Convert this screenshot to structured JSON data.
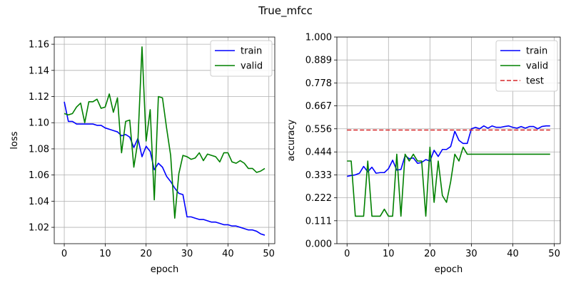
{
  "figure_title": "True_mfcc",
  "colors": {
    "train": "#0000ff",
    "valid": "#008000",
    "test": "#d62728"
  },
  "chart_data": [
    {
      "type": "line",
      "xlabel": "epoch",
      "ylabel": "loss",
      "xlim": [
        -2.45,
        51.45
      ],
      "ylim": [
        1.0075,
        1.1655
      ],
      "xticks": [
        0,
        10,
        20,
        30,
        40,
        50
      ],
      "xtick_labels": [
        "0",
        "10",
        "20",
        "30",
        "40",
        "50"
      ],
      "yticks": [
        1.02,
        1.04,
        1.06,
        1.08,
        1.1,
        1.12,
        1.14,
        1.16
      ],
      "ytick_labels": [
        "1.02",
        "1.04",
        "1.06",
        "1.08",
        "1.10",
        "1.12",
        "1.14",
        "1.16"
      ],
      "grid": true,
      "legend_position": "top-right",
      "series": [
        {
          "name": "train",
          "color": "#0000ff",
          "style": "solid",
          "x": [
            0,
            1,
            2,
            3,
            4,
            5,
            6,
            7,
            8,
            9,
            10,
            11,
            12,
            13,
            14,
            15,
            16,
            17,
            18,
            19,
            20,
            21,
            22,
            23,
            24,
            25,
            26,
            27,
            28,
            29,
            30,
            31,
            32,
            33,
            34,
            35,
            36,
            37,
            38,
            39,
            40,
            41,
            42,
            43,
            44,
            45,
            46,
            47,
            48,
            49
          ],
          "values": [
            1.116,
            1.101,
            1.101,
            1.099,
            1.099,
            1.099,
            1.099,
            1.099,
            1.098,
            1.098,
            1.096,
            1.095,
            1.094,
            1.093,
            1.09,
            1.091,
            1.089,
            1.081,
            1.088,
            1.074,
            1.082,
            1.078,
            1.064,
            1.069,
            1.066,
            1.059,
            1.055,
            1.05,
            1.046,
            1.045,
            1.028,
            1.028,
            1.027,
            1.026,
            1.026,
            1.025,
            1.024,
            1.024,
            1.023,
            1.022,
            1.022,
            1.021,
            1.021,
            1.02,
            1.019,
            1.018,
            1.018,
            1.017,
            1.015,
            1.014
          ]
        },
        {
          "name": "valid",
          "color": "#008000",
          "style": "solid",
          "x": [
            0,
            1,
            2,
            3,
            4,
            5,
            6,
            7,
            8,
            9,
            10,
            11,
            12,
            13,
            14,
            15,
            16,
            17,
            18,
            19,
            20,
            21,
            22,
            23,
            24,
            25,
            26,
            27,
            28,
            29,
            30,
            31,
            32,
            33,
            34,
            35,
            36,
            37,
            38,
            39,
            40,
            41,
            42,
            43,
            44,
            45,
            46,
            47,
            48,
            49
          ],
          "values": [
            1.107,
            1.106,
            1.107,
            1.112,
            1.115,
            1.1,
            1.116,
            1.116,
            1.118,
            1.111,
            1.112,
            1.122,
            1.108,
            1.119,
            1.077,
            1.101,
            1.102,
            1.066,
            1.086,
            1.158,
            1.086,
            1.11,
            1.041,
            1.12,
            1.119,
            1.096,
            1.075,
            1.027,
            1.061,
            1.075,
            1.074,
            1.072,
            1.073,
            1.077,
            1.071,
            1.076,
            1.075,
            1.074,
            1.07,
            1.077,
            1.077,
            1.07,
            1.069,
            1.071,
            1.069,
            1.065,
            1.065,
            1.062,
            1.063,
            1.065
          ]
        }
      ]
    },
    {
      "type": "line",
      "xlabel": "epoch",
      "ylabel": "accuracy",
      "xlim": [
        -2.45,
        51.45
      ],
      "ylim": [
        0.0,
        1.0
      ],
      "xticks": [
        0,
        10,
        20,
        30,
        40,
        50
      ],
      "xtick_labels": [
        "0",
        "10",
        "20",
        "30",
        "40",
        "50"
      ],
      "yticks": [
        0.0,
        0.111,
        0.222,
        0.333,
        0.444,
        0.556,
        0.667,
        0.778,
        0.889,
        1.0
      ],
      "ytick_labels": [
        "0.000",
        "0.111",
        "0.222",
        "0.333",
        "0.444",
        "0.556",
        "0.667",
        "0.778",
        "0.889",
        "1.000"
      ],
      "grid": true,
      "legend_position": "top-right",
      "series": [
        {
          "name": "train",
          "color": "#0000ff",
          "style": "solid",
          "x": [
            0,
            1,
            2,
            3,
            4,
            5,
            6,
            7,
            8,
            9,
            10,
            11,
            12,
            13,
            14,
            15,
            16,
            17,
            18,
            19,
            20,
            21,
            22,
            23,
            24,
            25,
            26,
            27,
            28,
            29,
            30,
            31,
            32,
            33,
            34,
            35,
            36,
            37,
            38,
            39,
            40,
            41,
            42,
            43,
            44,
            45,
            46,
            47,
            48,
            49
          ],
          "values": [
            0.326,
            0.33,
            0.333,
            0.341,
            0.374,
            0.348,
            0.37,
            0.341,
            0.344,
            0.344,
            0.363,
            0.404,
            0.356,
            0.359,
            0.426,
            0.411,
            0.415,
            0.389,
            0.393,
            0.407,
            0.4,
            0.452,
            0.422,
            0.456,
            0.456,
            0.47,
            0.544,
            0.5,
            0.485,
            0.485,
            0.556,
            0.563,
            0.556,
            0.57,
            0.559,
            0.57,
            0.563,
            0.563,
            0.567,
            0.57,
            0.563,
            0.559,
            0.567,
            0.559,
            0.567,
            0.567,
            0.556,
            0.567,
            0.57,
            0.57
          ]
        },
        {
          "name": "valid",
          "color": "#008000",
          "style": "solid",
          "x": [
            0,
            1,
            2,
            3,
            4,
            5,
            6,
            7,
            8,
            9,
            10,
            11,
            12,
            13,
            14,
            15,
            16,
            17,
            18,
            19,
            20,
            21,
            22,
            23,
            24,
            25,
            26,
            27,
            28,
            29,
            30,
            31,
            32,
            33,
            34,
            35,
            36,
            37,
            38,
            39,
            40,
            41,
            42,
            43,
            44,
            45,
            46,
            47,
            48,
            49
          ],
          "values": [
            0.4,
            0.4,
            0.133,
            0.133,
            0.133,
            0.4,
            0.133,
            0.133,
            0.133,
            0.167,
            0.133,
            0.133,
            0.433,
            0.133,
            0.433,
            0.4,
            0.433,
            0.4,
            0.4,
            0.133,
            0.467,
            0.2,
            0.4,
            0.233,
            0.2,
            0.3,
            0.433,
            0.4,
            0.467,
            0.433,
            0.433,
            0.433,
            0.433,
            0.433,
            0.433,
            0.433,
            0.433,
            0.433,
            0.433,
            0.433,
            0.433,
            0.433,
            0.433,
            0.433,
            0.433,
            0.433,
            0.433,
            0.433,
            0.433,
            0.433
          ]
        },
        {
          "name": "test",
          "color": "#d62728",
          "style": "dashed",
          "x": [
            0,
            49
          ],
          "values": [
            0.55,
            0.55
          ]
        }
      ]
    }
  ]
}
